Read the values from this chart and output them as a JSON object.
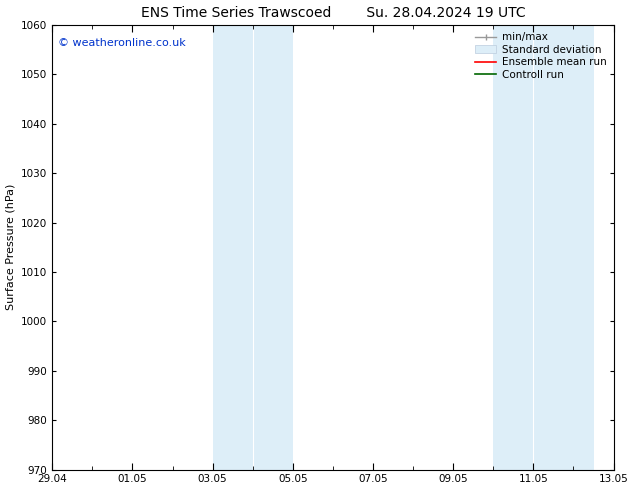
{
  "title": "ENS Time Series Trawscoed        Su. 28.04.2024 19 UTC",
  "ylabel": "Surface Pressure (hPa)",
  "ylim": [
    970,
    1060
  ],
  "yticks": [
    970,
    980,
    990,
    1000,
    1010,
    1020,
    1030,
    1040,
    1050,
    1060
  ],
  "xlim_start": 0,
  "xlim_end": 14,
  "xtick_labels": [
    "29.04",
    "01.05",
    "03.05",
    "05.05",
    "07.05",
    "09.05",
    "11.05",
    "13.05"
  ],
  "xtick_positions": [
    0,
    2,
    4,
    6,
    8,
    10,
    12,
    14
  ],
  "shaded_bands": [
    {
      "x_start": 4.0,
      "x_end": 5.0,
      "color": "#ddeef8"
    },
    {
      "x_start": 5.0,
      "x_end": 6.0,
      "color": "#ddeef8"
    },
    {
      "x_start": 11.0,
      "x_end": 12.0,
      "color": "#ddeef8"
    },
    {
      "x_start": 12.0,
      "x_end": 13.5,
      "color": "#ddeef8"
    }
  ],
  "watermark_text": "© weatheronline.co.uk",
  "watermark_color": "#0033cc",
  "bg_color": "#ffffff",
  "plot_bg_color": "#ffffff",
  "title_fontsize": 10,
  "axis_label_fontsize": 8,
  "tick_fontsize": 7.5,
  "legend_fontsize": 7.5,
  "figwidth": 6.34,
  "figheight": 4.9,
  "dpi": 100
}
